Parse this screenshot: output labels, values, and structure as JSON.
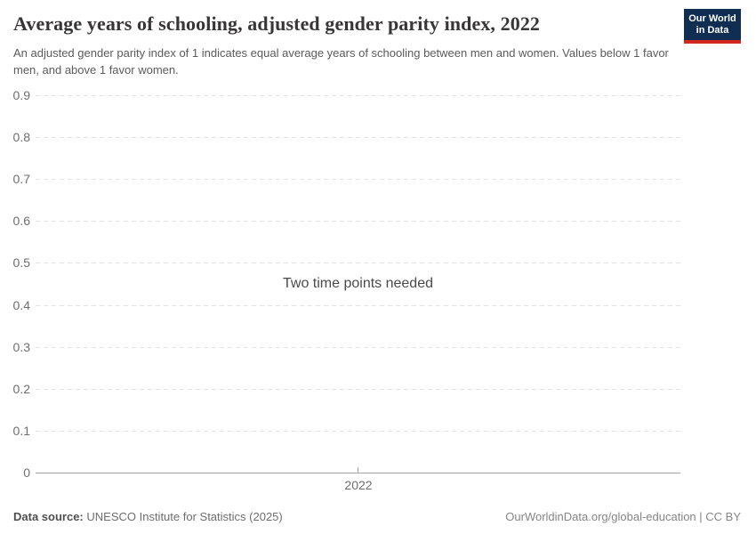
{
  "header": {
    "title": "Average years of schooling, adjusted gender parity index, 2022",
    "subtitle": "An adjusted gender parity index of 1 indicates equal average years of schooling between men and women. Values below 1 favor men, and above 1 favor women."
  },
  "logo": {
    "line1": "Our World",
    "line2": "in Data",
    "background_color": "#0f2e52",
    "accent_bar_color": "#d2271f",
    "text_color": "#ffffff"
  },
  "chart_data": {
    "type": "line",
    "title": "Average years of schooling, adjusted gender parity index, 2022",
    "empty_state_message": "Two time points needed",
    "series": [],
    "x_tick_labels": [
      "2022"
    ],
    "y_tick_values": [
      0,
      0.1,
      0.2,
      0.3,
      0.4,
      0.5,
      0.6,
      0.7,
      0.8,
      0.9
    ],
    "y_tick_labels": [
      "0",
      "0.1",
      "0.2",
      "0.3",
      "0.4",
      "0.5",
      "0.6",
      "0.7",
      "0.8",
      "0.9"
    ],
    "ylim": [
      0,
      0.9
    ],
    "grid": "horizontal-dashed",
    "grid_color": "#e3e3e3",
    "axis_color": "#a3a3a3",
    "tick_label_color": "#6e6e6e"
  },
  "footer": {
    "source_label": "Data source:",
    "source_text": "UNESCO Institute for Statistics (2025)",
    "credit": "OurWorldinData.org/global-education | CC BY"
  }
}
